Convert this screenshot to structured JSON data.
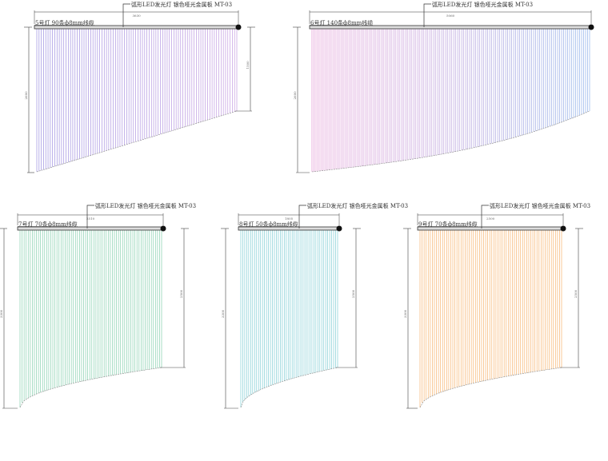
{
  "panels": [
    {
      "name": "light-5",
      "title": "5号灯 90条ф8mm线缆",
      "leader": "弧形LED发光灯 银色哑光金属板 MT-03",
      "width_dim": "3630",
      "left_dim": "2600",
      "right_dim": "1500",
      "colors": [
        "#9a8fe0",
        "#c49be0"
      ],
      "count": 90,
      "curve": "linear"
    },
    {
      "name": "light-6",
      "title": "6号灯 140条ф8mm线缆",
      "leader": "弧形LED发光灯 银色哑光金属板 MT-03",
      "width_dim": "5060",
      "left_dim": "2600",
      "right_dim": "",
      "colors": [
        "#e08ccf",
        "#8fb2ea"
      ],
      "count": 140,
      "curve": "s"
    },
    {
      "name": "light-7",
      "title": "7号灯 70条ф8mm线缆",
      "leader": "弧形LED发光灯 银色哑光金属板 MT-03",
      "width_dim": "2510",
      "left_dim": "3300",
      "right_dim": "2500",
      "colors": [
        "#86cfae",
        "#86cfae"
      ],
      "count": 70,
      "curve": "convex"
    },
    {
      "name": "light-8",
      "title": "8号灯 50条ф8mm线缆",
      "leader": "弧形LED发光灯 银色哑光金属板 MT-03",
      "width_dim": "1805",
      "left_dim": "3300",
      "right_dim": "2500",
      "colors": [
        "#80cdd4",
        "#80cdd4"
      ],
      "count": 50,
      "curve": "convex"
    },
    {
      "name": "light-9",
      "title": "9号灯 70条ф8mm线缆",
      "leader": "弧形LED发光灯 银色哑光金属板 MT-03",
      "width_dim": "2500",
      "left_dim": "3300",
      "right_dim": "2500",
      "colors": [
        "#f7b46e",
        "#f7b46e"
      ],
      "count": 70,
      "curve": "convex"
    }
  ]
}
